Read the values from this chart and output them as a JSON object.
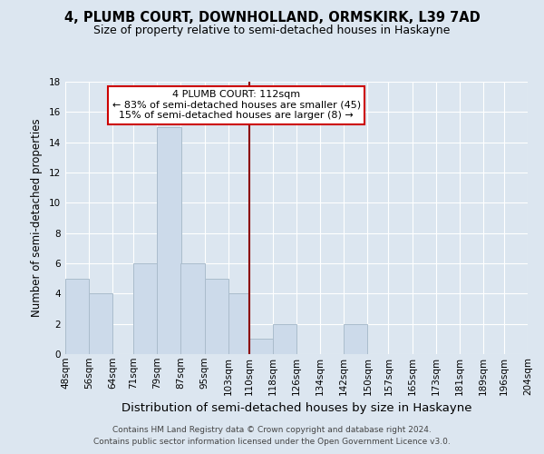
{
  "title": "4, PLUMB COURT, DOWNHOLLAND, ORMSKIRK, L39 7AD",
  "subtitle": "Size of property relative to semi-detached houses in Haskayne",
  "xlabel": "Distribution of semi-detached houses by size in Haskayne",
  "ylabel": "Number of semi-detached properties",
  "bin_edges": [
    48,
    56,
    64,
    71,
    79,
    87,
    95,
    103,
    110,
    118,
    126,
    134,
    142,
    150,
    157,
    165,
    173,
    181,
    189,
    196,
    204
  ],
  "bin_labels": [
    "48sqm",
    "56sqm",
    "64sqm",
    "71sqm",
    "79sqm",
    "87sqm",
    "95sqm",
    "103sqm",
    "110sqm",
    "118sqm",
    "126sqm",
    "134sqm",
    "142sqm",
    "150sqm",
    "157sqm",
    "165sqm",
    "173sqm",
    "181sqm",
    "189sqm",
    "196sqm",
    "204sqm"
  ],
  "counts": [
    5,
    4,
    0,
    6,
    15,
    6,
    5,
    4,
    1,
    2,
    0,
    0,
    2,
    0,
    0,
    0,
    0,
    0,
    0,
    0
  ],
  "bar_color": "#ccdaea",
  "bar_edge_color": "#aabccc",
  "property_line_x": 110,
  "property_line_color": "#8b0000",
  "annotation_title": "4 PLUMB COURT: 112sqm",
  "annotation_line1": "← 83% of semi-detached houses are smaller (45)",
  "annotation_line2": "15% of semi-detached houses are larger (8) →",
  "annotation_box_facecolor": "#ffffff",
  "annotation_box_edgecolor": "#cc0000",
  "ylim": [
    0,
    18
  ],
  "yticks": [
    0,
    2,
    4,
    6,
    8,
    10,
    12,
    14,
    16,
    18
  ],
  "background_color": "#dce6f0",
  "grid_color": "#ffffff",
  "footer_line1": "Contains HM Land Registry data © Crown copyright and database right 2024.",
  "footer_line2": "Contains public sector information licensed under the Open Government Licence v3.0.",
  "title_fontsize": 10.5,
  "subtitle_fontsize": 9,
  "xlabel_fontsize": 9.5,
  "ylabel_fontsize": 8.5,
  "tick_fontsize": 7.5,
  "footer_fontsize": 6.5
}
